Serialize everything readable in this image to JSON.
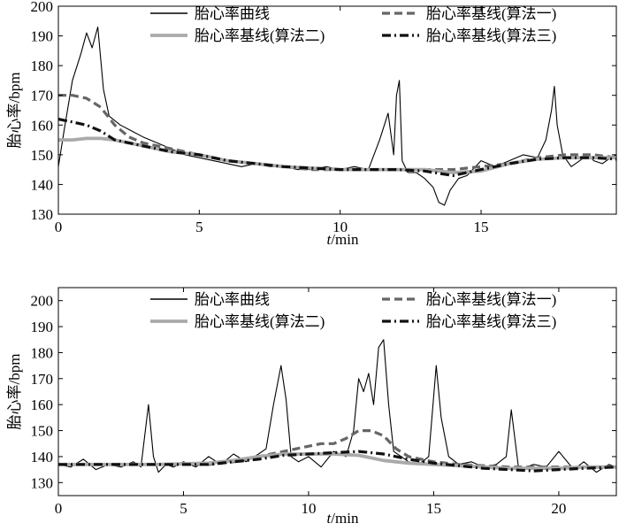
{
  "chart_data": [
    {
      "type": "line",
      "xlabel_italic": "t",
      "xlabel_rest": "/min",
      "ylabel": "胎心率/bpm",
      "xlim": [
        0,
        19.8
      ],
      "ylim": [
        130,
        200
      ],
      "xticks": [
        0,
        5,
        10,
        15
      ],
      "yticks": [
        130,
        140,
        150,
        160,
        170,
        180,
        190,
        200
      ],
      "grid": false,
      "legend_position": "top",
      "colors": {
        "fhr": "#000000",
        "alg1": "#666666",
        "alg2": "#aaaaaa",
        "alg3": "#111111"
      },
      "legend": [
        {
          "key": "fhr",
          "label": "胎心率曲线"
        },
        {
          "key": "alg1",
          "label": "胎心率基线(算法一)"
        },
        {
          "key": "alg2",
          "label": "胎心率基线(算法二)"
        },
        {
          "key": "alg3",
          "label": "胎心率基线(算法三)"
        }
      ],
      "series": [
        {
          "key": "fhr",
          "x": [
            0,
            0.2,
            0.5,
            0.8,
            1.0,
            1.2,
            1.4,
            1.6,
            1.8,
            2.2,
            2.6,
            3.0,
            3.5,
            4.0,
            4.5,
            5.0,
            5.5,
            6.0,
            6.5,
            7.0,
            7.5,
            8.0,
            8.5,
            9.0,
            9.5,
            10.0,
            10.5,
            11.0,
            11.4,
            11.7,
            11.9,
            12.0,
            12.1,
            12.2,
            12.4,
            12.7,
            13.0,
            13.3,
            13.5,
            13.7,
            13.9,
            14.2,
            14.5,
            15.0,
            15.5,
            16.0,
            16.5,
            17.0,
            17.3,
            17.5,
            17.6,
            17.7,
            17.9,
            18.2,
            18.5,
            18.8,
            19.0,
            19.3,
            19.6,
            19.8
          ],
          "y": [
            146,
            158,
            175,
            184,
            191,
            186,
            193,
            172,
            163,
            160,
            158,
            156,
            154,
            152,
            150,
            149,
            148,
            147,
            146,
            147,
            146,
            146,
            145,
            145,
            146,
            145,
            146,
            145,
            155,
            164,
            150,
            170,
            175,
            148,
            144,
            144,
            142,
            139,
            134,
            133,
            138,
            142,
            143,
            148,
            146,
            148,
            150,
            149,
            155,
            165,
            173,
            160,
            150,
            146,
            148,
            150,
            148,
            147,
            149,
            150
          ]
        },
        {
          "key": "alg1",
          "x": [
            0,
            0.5,
            1.0,
            1.5,
            2.0,
            2.5,
            3.0,
            4.0,
            5.0,
            6.0,
            7.0,
            8.0,
            9.0,
            10.0,
            11.0,
            12.0,
            13.0,
            14.0,
            15.0,
            16.0,
            17.0,
            18.0,
            19.0,
            19.8
          ],
          "y": [
            170,
            170,
            169,
            166,
            160,
            156,
            154,
            152,
            150,
            148,
            147,
            146,
            145,
            145,
            145,
            145,
            145,
            145,
            146,
            147,
            149,
            150,
            150,
            149
          ]
        },
        {
          "key": "alg2",
          "x": [
            0,
            0.5,
            1.0,
            1.5,
            2.0,
            3.0,
            4.0,
            5.0,
            6.0,
            7.0,
            8.0,
            9.0,
            10.0,
            11.0,
            12.0,
            13.0,
            14.0,
            15.0,
            16.0,
            17.0,
            18.0,
            19.0,
            19.8
          ],
          "y": [
            155,
            155,
            155.5,
            155.5,
            155,
            153,
            151,
            150,
            148,
            147,
            146,
            145.5,
            145,
            145,
            145,
            145,
            144,
            144.5,
            147,
            148.5,
            149,
            149,
            149
          ]
        },
        {
          "key": "alg3",
          "x": [
            0,
            0.5,
            1.0,
            1.5,
            2.0,
            2.5,
            3.0,
            4.0,
            5.0,
            6.0,
            7.0,
            8.0,
            9.0,
            10.0,
            11.0,
            12.0,
            13.0,
            14.0,
            15.0,
            16.0,
            17.0,
            18.0,
            19.0,
            19.8
          ],
          "y": [
            162,
            161,
            160,
            158,
            155,
            154,
            153,
            151,
            150,
            148,
            147,
            146,
            145.5,
            145,
            145,
            145,
            144.5,
            143,
            145,
            147,
            148.5,
            149,
            149,
            148.5
          ]
        }
      ]
    },
    {
      "type": "line",
      "xlabel_italic": "t",
      "xlabel_rest": "/min",
      "ylabel": "胎心率/bpm",
      "xlim": [
        0,
        22.3
      ],
      "ylim": [
        125,
        205
      ],
      "xticks": [
        0,
        5,
        10,
        15,
        20
      ],
      "yticks": [
        130,
        140,
        150,
        160,
        170,
        180,
        190,
        200
      ],
      "grid": false,
      "legend_position": "top",
      "colors": {
        "fhr": "#000000",
        "alg1": "#666666",
        "alg2": "#aaaaaa",
        "alg3": "#111111"
      },
      "legend": [
        {
          "key": "fhr",
          "label": "胎心率曲线"
        },
        {
          "key": "alg1",
          "label": "胎心率基线(算法一)"
        },
        {
          "key": "alg2",
          "label": "胎心率基线(算法二)"
        },
        {
          "key": "alg3",
          "label": "胎心率基线(算法三)"
        }
      ],
      "series": [
        {
          "key": "fhr",
          "x": [
            0,
            0.5,
            1.0,
            1.5,
            2.0,
            2.5,
            3.0,
            3.3,
            3.6,
            3.8,
            4.0,
            4.3,
            4.6,
            5.0,
            5.5,
            6.0,
            6.5,
            7.0,
            7.5,
            8.0,
            8.3,
            8.6,
            8.9,
            9.1,
            9.3,
            9.6,
            10.0,
            10.5,
            11.0,
            11.5,
            11.8,
            12.0,
            12.2,
            12.4,
            12.6,
            12.8,
            13.0,
            13.2,
            13.4,
            13.7,
            14.0,
            14.4,
            14.8,
            15.1,
            15.3,
            15.6,
            16.0,
            16.5,
            17.0,
            17.5,
            17.9,
            18.1,
            18.4,
            19.0,
            19.5,
            20.0,
            20.6,
            21.0,
            21.5,
            22.0,
            22.3
          ],
          "y": [
            137,
            136,
            139,
            135,
            137,
            136,
            138,
            136,
            160,
            140,
            134,
            137,
            136,
            138,
            136,
            140,
            137,
            141,
            138,
            141,
            143,
            160,
            175,
            162,
            140,
            138,
            140,
            136,
            142,
            140,
            150,
            170,
            165,
            172,
            160,
            182,
            185,
            160,
            142,
            140,
            138,
            137,
            140,
            175,
            155,
            140,
            137,
            138,
            136,
            137,
            140,
            158,
            135,
            137,
            136,
            142,
            135,
            138,
            134,
            137,
            136
          ]
        },
        {
          "key": "alg1",
          "x": [
            0,
            2,
            4,
            6,
            7,
            8,
            9,
            10,
            10.5,
            11,
            11.5,
            12,
            12.5,
            13,
            13.5,
            14,
            15,
            16,
            17,
            18,
            19,
            20,
            21,
            22.3
          ],
          "y": [
            137,
            137,
            137,
            137,
            138,
            140,
            142,
            144,
            145,
            145,
            147,
            150,
            150,
            148,
            143,
            140,
            138,
            137,
            136.5,
            136,
            136,
            136,
            136,
            136
          ]
        },
        {
          "key": "alg2",
          "x": [
            0,
            2,
            4,
            6,
            7,
            8,
            9,
            10,
            11,
            12,
            12.5,
            13,
            14,
            15,
            16,
            17,
            18,
            19,
            20,
            21,
            22.3
          ],
          "y": [
            137,
            137,
            137,
            137.5,
            138.5,
            140,
            141,
            141,
            141,
            140.5,
            139.5,
            138.5,
            137.5,
            137,
            136.5,
            136,
            135.5,
            135.5,
            135.5,
            136,
            136
          ]
        },
        {
          "key": "alg3",
          "x": [
            0,
            2,
            4,
            6,
            7,
            8,
            9,
            10,
            11,
            12,
            13,
            14,
            15,
            16,
            17,
            18,
            19,
            20,
            21,
            22.3
          ],
          "y": [
            137,
            137,
            137,
            137,
            138,
            139,
            140.5,
            141,
            141.5,
            142,
            141,
            139,
            137.5,
            136.5,
            135.5,
            135,
            134.5,
            135,
            135.5,
            136
          ]
        }
      ]
    }
  ]
}
